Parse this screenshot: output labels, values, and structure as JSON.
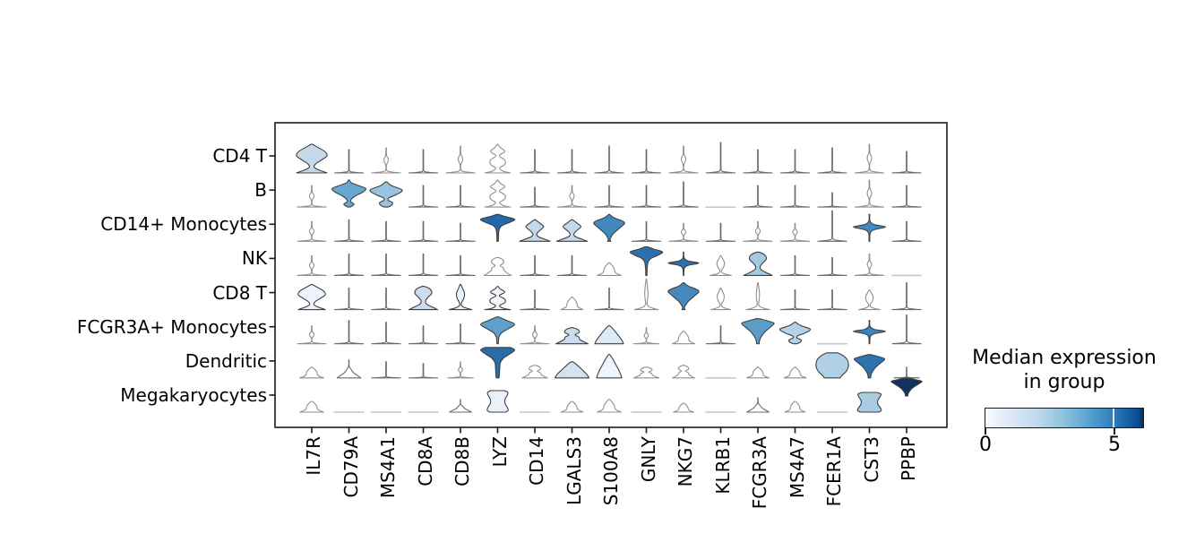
{
  "figure": {
    "background": "#ffffff"
  },
  "chart_data": {
    "type": "stacked_violin",
    "title": "",
    "rows": [
      "CD4 T",
      "B",
      "CD14+ Monocytes",
      "NK",
      "CD8 T",
      "FCGR3A+ Monocytes",
      "Dendritic",
      "Megakaryocytes"
    ],
    "columns": [
      "IL7R",
      "CD79A",
      "MS4A1",
      "CD8A",
      "CD8B",
      "LYZ",
      "CD14",
      "LGALS3",
      "S100A8",
      "GNLY",
      "NKG7",
      "KLRB1",
      "FCGR3A",
      "MS4A7",
      "FCER1A",
      "CST3",
      "PPBP"
    ],
    "median_expression": [
      [
        2.0,
        0,
        0,
        0,
        0,
        0,
        0,
        0,
        0,
        0,
        0,
        0,
        0,
        0,
        0,
        0,
        0
      ],
      [
        0,
        3.6,
        2.9,
        0,
        0,
        0,
        0,
        0,
        0,
        0,
        0,
        0,
        0,
        0,
        0,
        0,
        0
      ],
      [
        0,
        0,
        0,
        0,
        0,
        5.1,
        2.1,
        2.1,
        4.3,
        0,
        0,
        0,
        0,
        0,
        0,
        4.3,
        0
      ],
      [
        0,
        0,
        0,
        0,
        0,
        0,
        0,
        0,
        0,
        4.9,
        4.9,
        0,
        2.6,
        0,
        0,
        0,
        0
      ],
      [
        0.3,
        0,
        0,
        1.8,
        0.6,
        0.1,
        0,
        0,
        0,
        0,
        4.2,
        0,
        0,
        0,
        0,
        0,
        0
      ],
      [
        0,
        0,
        0,
        0,
        0,
        3.8,
        0,
        2.0,
        1.2,
        0,
        0,
        0,
        3.8,
        2.4,
        0,
        4.5,
        0
      ],
      [
        0,
        0,
        0,
        0,
        0,
        5.0,
        0,
        1.6,
        0.4,
        0,
        0,
        0,
        0,
        0,
        2.5,
        4.8,
        0
      ],
      [
        0,
        0,
        0,
        0,
        0,
        0.8,
        0,
        0,
        0,
        0,
        0,
        0,
        0,
        0,
        0,
        2.5,
        6.2
      ]
    ],
    "cells": [
      [
        [
          "on",
          32,
          18,
          2.0,
          "#c5d9eb"
        ],
        [
          "t",
          26,
          17
        ],
        [
          "l",
          28,
          17
        ],
        [
          "t",
          26,
          17
        ],
        [
          "l",
          30,
          17
        ],
        [
          "d2",
          32,
          16
        ],
        [
          "t",
          26,
          17
        ],
        [
          "t",
          26,
          17
        ],
        [
          "t",
          30,
          17
        ],
        [
          "t",
          26,
          17
        ],
        [
          "l",
          30,
          17
        ],
        [
          "t",
          34,
          17
        ],
        [
          "t",
          26,
          17
        ],
        [
          "t",
          26,
          17
        ],
        [
          "t",
          28,
          17
        ],
        [
          "l",
          32,
          17
        ],
        [
          "t",
          24,
          17
        ]
      ],
      [
        [
          "l",
          24,
          17
        ],
        [
          "wf",
          30,
          19,
          3.6,
          "#68a8d0"
        ],
        [
          "no",
          28,
          18,
          2.9,
          "#97c3de"
        ],
        [
          "t",
          24,
          17
        ],
        [
          "t",
          24,
          17
        ],
        [
          "d2",
          30,
          16
        ],
        [
          "t",
          22,
          17
        ],
        [
          "l",
          24,
          17
        ],
        [
          "t",
          24,
          17
        ],
        [
          "t",
          24,
          17
        ],
        [
          "t",
          28,
          17
        ],
        [
          "f",
          0,
          17
        ],
        [
          "t",
          24,
          17
        ],
        [
          "t",
          24,
          17
        ],
        [
          "t",
          16,
          17
        ],
        [
          "l",
          30,
          17
        ],
        [
          "t",
          24,
          17
        ]
      ],
      [
        [
          "l",
          22,
          17
        ],
        [
          "t",
          24,
          17
        ],
        [
          "t",
          22,
          17
        ],
        [
          "t",
          22,
          17
        ],
        [
          "t",
          20,
          17
        ],
        [
          "ft",
          30,
          19,
          5.1,
          "#2468a9"
        ],
        [
          "hr",
          24,
          18,
          2.1,
          "#c3d8eb"
        ],
        [
          "hr",
          24,
          18,
          2.1,
          "#c3d8eb"
        ],
        [
          "kt",
          30,
          17,
          4.3,
          "#4189bd"
        ],
        [
          "t",
          22,
          17
        ],
        [
          "l",
          20,
          17
        ],
        [
          "t",
          20,
          17
        ],
        [
          "l",
          22,
          17
        ],
        [
          "l",
          20,
          17
        ],
        [
          "t",
          34,
          17
        ],
        [
          "st",
          30,
          18,
          4.3,
          "#4489bd"
        ],
        [
          "t",
          22,
          17
        ]
      ],
      [
        [
          "l",
          22,
          17
        ],
        [
          "t",
          24,
          17
        ],
        [
          "t",
          24,
          17
        ],
        [
          "t",
          24,
          17
        ],
        [
          "t",
          22,
          17
        ],
        [
          "b2",
          20,
          16
        ],
        [
          "t",
          22,
          17
        ],
        [
          "t",
          22,
          17
        ],
        [
          "b",
          14,
          14
        ],
        [
          "ft",
          32,
          18,
          4.9,
          "#2e70ab"
        ],
        [
          "st",
          26,
          17,
          4.9,
          "#2e70ab"
        ],
        [
          "lb",
          22,
          14
        ],
        [
          "ms",
          26,
          17,
          2.6,
          "#a5c9e0"
        ],
        [
          "t",
          22,
          17
        ],
        [
          "t",
          20,
          17
        ],
        [
          "l",
          24,
          17
        ],
        [
          "f",
          0,
          17
        ]
      ],
      [
        [
          "on",
          28,
          16,
          0.3,
          "#eef4fb"
        ],
        [
          "t",
          24,
          17
        ],
        [
          "t",
          24,
          17
        ],
        [
          "ms",
          26,
          17,
          1.8,
          "#cdddee"
        ],
        [
          "lb",
          28,
          15,
          0.6,
          "#e9f1f9"
        ],
        [
          "d2",
          26,
          16,
          0.1,
          "#f2f7fd"
        ],
        [
          "t",
          22,
          17
        ],
        [
          "b",
          14,
          13
        ],
        [
          "t",
          24,
          17
        ],
        [
          "to",
          34,
          14
        ],
        [
          "kt",
          30,
          17,
          4.2,
          "#4589be"
        ],
        [
          "lb",
          24,
          13
        ],
        [
          "to",
          30,
          14
        ],
        [
          "t",
          22,
          17
        ],
        [
          "t",
          22,
          17
        ],
        [
          "lb",
          22,
          14
        ],
        [
          "t",
          30,
          17
        ]
      ],
      [
        [
          "l",
          20,
          17
        ],
        [
          "t",
          26,
          17
        ],
        [
          "t",
          24,
          17
        ],
        [
          "t",
          20,
          17
        ],
        [
          "t",
          22,
          17
        ],
        [
          "kn",
          30,
          19,
          3.8,
          "#5e9fcb"
        ],
        [
          "l",
          20,
          17
        ],
        [
          "b2",
          18,
          19,
          2.0,
          "#c9dbed"
        ],
        [
          "mo",
          20,
          16,
          1.2,
          "#dceaf5"
        ],
        [
          "l",
          18,
          15
        ],
        [
          "b",
          14,
          13
        ],
        [
          "t",
          20,
          17
        ],
        [
          "fn",
          28,
          18,
          3.8,
          "#5b9dc9"
        ],
        [
          "no",
          24,
          17,
          2.4,
          "#b3d2e7"
        ],
        [
          "f",
          0,
          17
        ],
        [
          "st",
          26,
          18,
          4.5,
          "#3a85bf"
        ],
        [
          "t",
          32,
          17
        ]
      ],
      [
        [
          "b",
          12,
          14
        ],
        [
          "bs",
          20,
          14
        ],
        [
          "t",
          18,
          17
        ],
        [
          "t",
          16,
          17
        ],
        [
          "l",
          18,
          15
        ],
        [
          "fu",
          34,
          19,
          5.0,
          "#2b6ca8"
        ],
        [
          "b2",
          14,
          15
        ],
        [
          "mo",
          18,
          19,
          1.6,
          "#d3e2f0"
        ],
        [
          "mo",
          26,
          14,
          0.4,
          "#eef4fb"
        ],
        [
          "b2",
          12,
          15
        ],
        [
          "b2",
          14,
          13
        ],
        [
          "f",
          0,
          17
        ],
        [
          "b",
          12,
          13
        ],
        [
          "b",
          12,
          13
        ],
        [
          "bl",
          28,
          18,
          2.5,
          "#b0d0e6"
        ],
        [
          "fn",
          26,
          17,
          4.8,
          "#2e73ae"
        ],
        [
          "t",
          12,
          15
        ]
      ],
      [
        [
          "b",
          12,
          14
        ],
        [
          "f",
          0,
          17
        ],
        [
          "f",
          0,
          17
        ],
        [
          "f",
          0,
          17
        ],
        [
          "bs",
          14,
          13
        ],
        [
          "bk",
          24,
          15,
          0.8,
          "#e9f2fa"
        ],
        [
          "f",
          0,
          17
        ],
        [
          "b",
          12,
          13
        ],
        [
          "b",
          14,
          14
        ],
        [
          "f",
          0,
          17
        ],
        [
          "b",
          10,
          12
        ],
        [
          "f",
          0,
          17
        ],
        [
          "bs",
          16,
          13
        ],
        [
          "b",
          12,
          12
        ],
        [
          "f",
          0,
          17
        ],
        [
          "bk",
          22,
          17,
          2.5,
          "#a9cce2"
        ],
        [
          "fn",
          20,
          17,
          6.2,
          "#12335f",
          18
        ]
      ]
    ],
    "colorbar": {
      "title": "Median expression in group",
      "title_lines": [
        "Median expression",
        "in group"
      ],
      "ticks": [
        0,
        5
      ],
      "vmin": 0,
      "vmax": 6.2,
      "colormap": "Blues",
      "gradient_stops": [
        "#f7fbff 0%",
        "#dce9f6 16%",
        "#c0d9ed 32%",
        "#94c4df 48%",
        "#5ba3d0 65%",
        "#2e7ebc 81%",
        "#0a4a90 97%",
        "#08306b 100%"
      ],
      "inner_tick_value": 5
    },
    "layout_hints": {
      "legend_position": "right-bottom",
      "grid": false,
      "x_tick_rotation": 90
    }
  }
}
